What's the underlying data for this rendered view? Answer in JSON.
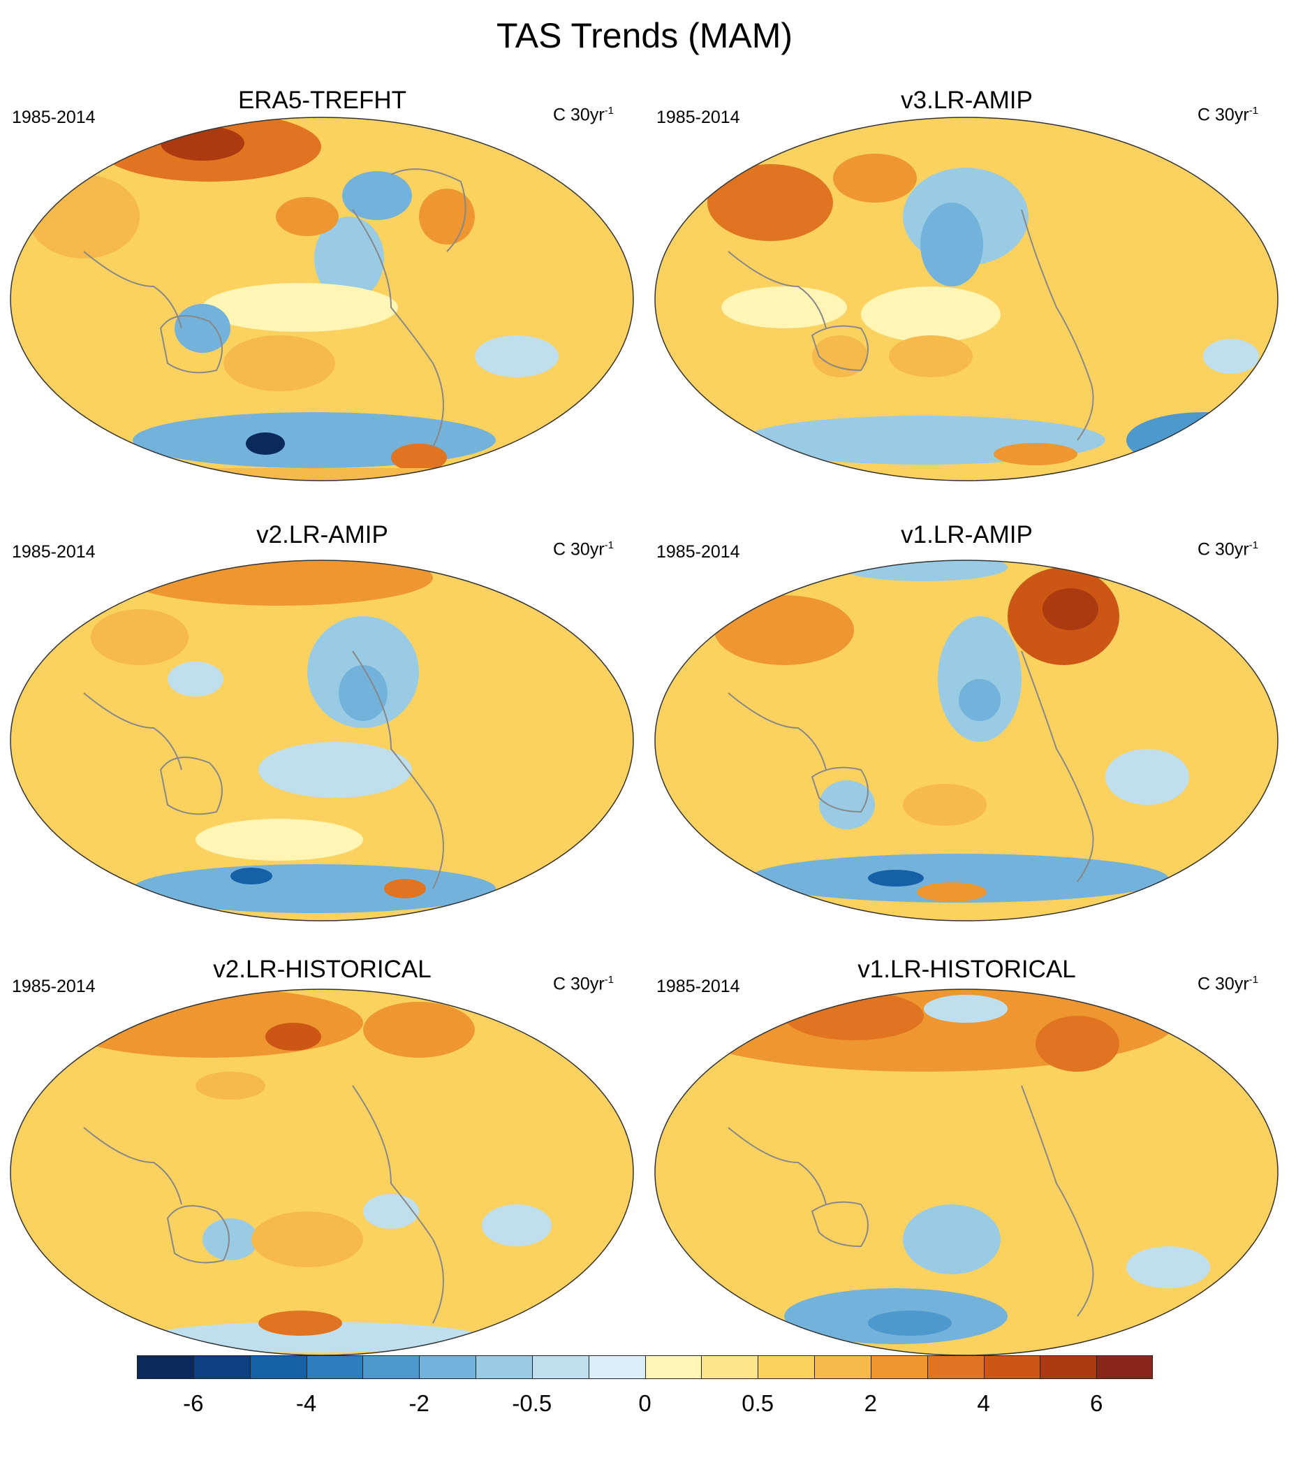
{
  "title": "TAS Trends (MAM)",
  "panels": [
    {
      "title": "ERA5-TREFHT",
      "period": "1985-2014",
      "units": "C 30yr",
      "units_sup": "-1"
    },
    {
      "title": "v3.LR-AMIP",
      "period": "1985-2014",
      "units": "C 30yr",
      "units_sup": "-1"
    },
    {
      "title": "v2.LR-AMIP",
      "period": "1985-2014",
      "units": "C 30yr",
      "units_sup": "-1"
    },
    {
      "title": "v1.LR-AMIP",
      "period": "1985-2014",
      "units": "C 30yr",
      "units_sup": "-1"
    },
    {
      "title": "v2.LR-HISTORICAL",
      "period": "1985-2014",
      "units": "C 30yr",
      "units_sup": "-1"
    },
    {
      "title": "v1.LR-HISTORICAL",
      "period": "1985-2014",
      "units": "C 30yr",
      "units_sup": "-1"
    }
  ],
  "colorbar": {
    "colors": [
      "#0b2a5c",
      "#0e3f82",
      "#1660a8",
      "#2e7dbf",
      "#4d98cc",
      "#73b2da",
      "#99cbe4",
      "#bfdfee",
      "#d9eef8",
      "#fff5b5",
      "#fee48a",
      "#fbd25f",
      "#f6b94b",
      "#ee9730",
      "#e07420",
      "#cc5614",
      "#ac3a10",
      "#88261a"
    ],
    "labels": [
      "-6",
      "-4",
      "-2",
      "-0.5",
      "0",
      "0.5",
      "2",
      "4",
      "6"
    ]
  }
}
